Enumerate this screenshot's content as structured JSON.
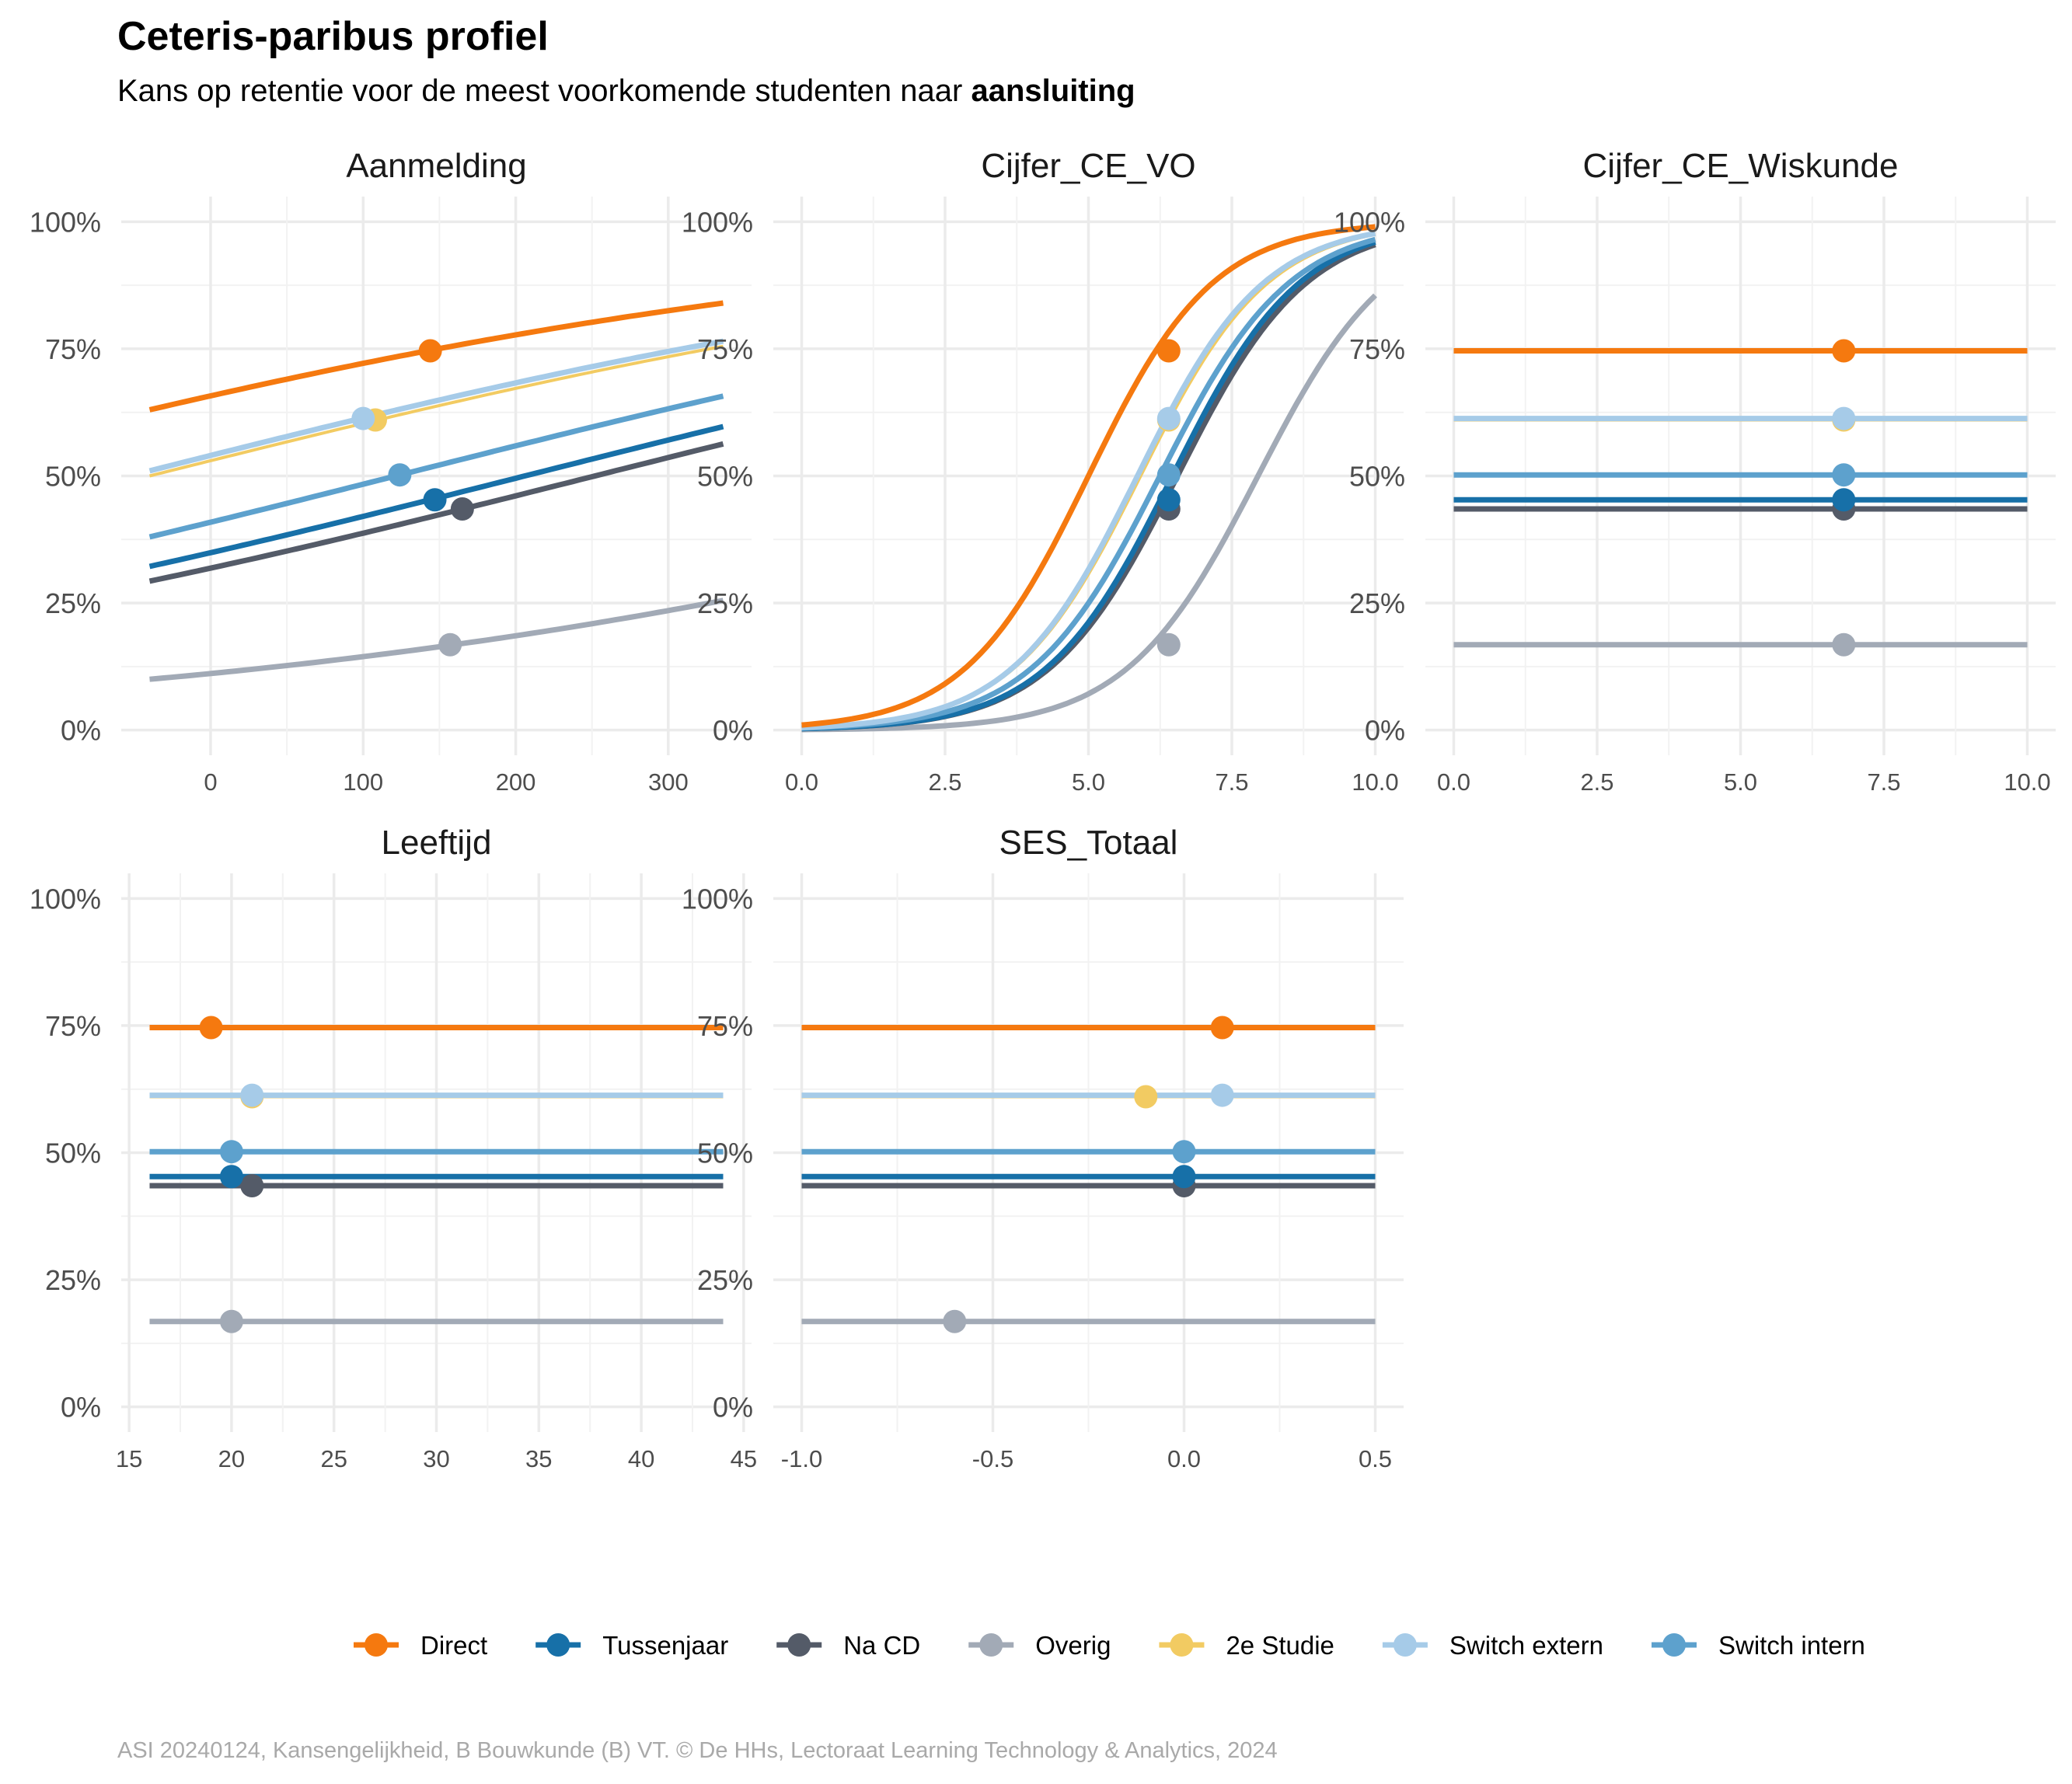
{
  "title": "Ceteris-paribus profiel",
  "subtitle_prefix": "Kans op retentie voor de meest voorkomende studenten naar ",
  "subtitle_bold": "aansluiting",
  "caption": "ASI 20240124, Kansengelijkheid, B Bouwkunde (B) VT. © De HHs, Lectoraat Learning Technology & Analytics, 2024",
  "chart_data": {
    "type": "line",
    "ylim": [
      0,
      1
    ],
    "y_ticks": [
      0,
      0.25,
      0.5,
      0.75,
      1.0
    ],
    "y_tick_labels": [
      "0%",
      "25%",
      "50%",
      "75%",
      "100%"
    ],
    "grid": true,
    "legend_position": "bottom",
    "series_styles": [
      {
        "name": "Direct",
        "color": "#F5790F"
      },
      {
        "name": "Tussenjaar",
        "color": "#1770A8"
      },
      {
        "name": "Na CD",
        "color": "#545B68"
      },
      {
        "name": "Overig",
        "color": "#A2AAB6"
      },
      {
        "name": "2e Studie",
        "color": "#F2CB62"
      },
      {
        "name": "Switch extern",
        "color": "#A6CBE8"
      },
      {
        "name": "Switch intern",
        "color": "#5DA1CD"
      }
    ],
    "panels": [
      {
        "title": "Aanmelding",
        "xlim": [
          -40,
          336
        ],
        "x_ticks": [
          0,
          100,
          200,
          300
        ],
        "x_tick_labels": [
          "0",
          "100",
          "200",
          "300"
        ],
        "curve": "logistic",
        "series": [
          {
            "name": "Overig",
            "y_start": 0.1,
            "y_end": 0.255,
            "point": [
              157,
              0.168
            ]
          },
          {
            "name": "Na CD",
            "y_start": 0.293,
            "y_end": 0.563,
            "point": [
              165,
              0.435
            ]
          },
          {
            "name": "Tussenjaar",
            "y_start": 0.322,
            "y_end": 0.597,
            "point": [
              147,
              0.453
            ]
          },
          {
            "name": "Switch intern",
            "y_start": 0.38,
            "y_end": 0.657,
            "point": [
              124,
              0.502
            ]
          },
          {
            "name": "2e Studie",
            "y_start": 0.5,
            "y_end": 0.755,
            "point": [
              108,
              0.61
            ]
          },
          {
            "name": "Switch extern",
            "y_start": 0.51,
            "y_end": 0.765,
            "point": [
              100,
              0.613
            ]
          },
          {
            "name": "Direct",
            "y_start": 0.63,
            "y_end": 0.84,
            "point": [
              144,
              0.746
            ]
          }
        ]
      },
      {
        "title": "Cijfer_CE_VO",
        "xlim": [
          0,
          10
        ],
        "x_ticks": [
          0,
          2.5,
          5,
          7.5,
          10
        ],
        "x_tick_labels": [
          "0.0",
          "2.5",
          "5.0",
          "7.5",
          "10.0"
        ],
        "curve": "logistic",
        "series": [
          {
            "name": "Overig",
            "y_start": 0.001,
            "y_end": 0.855,
            "point": [
              6.4,
              0.168
            ]
          },
          {
            "name": "Na CD",
            "y_start": 0.003,
            "y_end": 0.955,
            "point": [
              6.4,
              0.435
            ]
          },
          {
            "name": "Tussenjaar",
            "y_start": 0.003,
            "y_end": 0.96,
            "point": [
              6.4,
              0.453
            ]
          },
          {
            "name": "Switch intern",
            "y_start": 0.004,
            "y_end": 0.965,
            "point": [
              6.4,
              0.502
            ]
          },
          {
            "name": "2e Studie",
            "y_start": 0.005,
            "y_end": 0.975,
            "point": [
              6.4,
              0.61
            ]
          },
          {
            "name": "Switch extern",
            "y_start": 0.005,
            "y_end": 0.977,
            "point": [
              6.4,
              0.613
            ]
          },
          {
            "name": "Direct",
            "y_start": 0.01,
            "y_end": 0.99,
            "point": [
              6.4,
              0.746
            ]
          }
        ]
      },
      {
        "title": "Cijfer_CE_Wiskunde",
        "xlim": [
          0,
          10
        ],
        "x_ticks": [
          0,
          2.5,
          5,
          7.5,
          10
        ],
        "x_tick_labels": [
          "0.0",
          "2.5",
          "5.0",
          "7.5",
          "10.0"
        ],
        "curve": "flat",
        "series": [
          {
            "name": "Overig",
            "y_start": 0.168,
            "y_end": 0.168,
            "point": [
              6.8,
              0.168
            ]
          },
          {
            "name": "Na CD",
            "y_start": 0.435,
            "y_end": 0.435,
            "point": [
              6.8,
              0.435
            ]
          },
          {
            "name": "Tussenjaar",
            "y_start": 0.453,
            "y_end": 0.453,
            "point": [
              6.8,
              0.453
            ]
          },
          {
            "name": "Switch intern",
            "y_start": 0.502,
            "y_end": 0.502,
            "point": [
              6.8,
              0.502
            ]
          },
          {
            "name": "2e Studie",
            "y_start": 0.61,
            "y_end": 0.61,
            "point": [
              6.8,
              0.61
            ]
          },
          {
            "name": "Switch extern",
            "y_start": 0.613,
            "y_end": 0.613,
            "point": [
              6.8,
              0.613
            ]
          },
          {
            "name": "Direct",
            "y_start": 0.746,
            "y_end": 0.746,
            "point": [
              6.8,
              0.746
            ]
          }
        ]
      },
      {
        "title": "Leeftijd",
        "xlim": [
          16,
          44
        ],
        "x_ticks": [
          15,
          20,
          25,
          30,
          35,
          40,
          45
        ],
        "x_tick_labels": [
          "15",
          "20",
          "25",
          "30",
          "35",
          "40",
          "45"
        ],
        "curve": "flat",
        "series": [
          {
            "name": "Overig",
            "y_start": 0.168,
            "y_end": 0.168,
            "point": [
              20,
              0.168
            ]
          },
          {
            "name": "Na CD",
            "y_start": 0.435,
            "y_end": 0.435,
            "point": [
              21,
              0.435
            ]
          },
          {
            "name": "Tussenjaar",
            "y_start": 0.453,
            "y_end": 0.453,
            "point": [
              20,
              0.453
            ]
          },
          {
            "name": "Switch intern",
            "y_start": 0.502,
            "y_end": 0.502,
            "point": [
              20,
              0.502
            ]
          },
          {
            "name": "2e Studie",
            "y_start": 0.61,
            "y_end": 0.61,
            "point": [
              21,
              0.61
            ]
          },
          {
            "name": "Switch extern",
            "y_start": 0.613,
            "y_end": 0.613,
            "point": [
              21,
              0.613
            ]
          },
          {
            "name": "Direct",
            "y_start": 0.746,
            "y_end": 0.746,
            "point": [
              19,
              0.746
            ]
          }
        ]
      },
      {
        "title": "SES_Totaal",
        "xlim": [
          -1,
          0.5
        ],
        "x_ticks": [
          -1,
          -0.5,
          0,
          0.5
        ],
        "x_tick_labels": [
          "-1.0",
          "-0.5",
          "0.0",
          "0.5"
        ],
        "curve": "flat",
        "series": [
          {
            "name": "Overig",
            "y_start": 0.168,
            "y_end": 0.168,
            "point": [
              -0.6,
              0.168
            ]
          },
          {
            "name": "Na CD",
            "y_start": 0.435,
            "y_end": 0.435,
            "point": [
              0,
              0.435
            ]
          },
          {
            "name": "Tussenjaar",
            "y_start": 0.453,
            "y_end": 0.453,
            "point": [
              0,
              0.453
            ]
          },
          {
            "name": "Switch intern",
            "y_start": 0.502,
            "y_end": 0.502,
            "point": [
              0,
              0.502
            ]
          },
          {
            "name": "2e Studie",
            "y_start": 0.61,
            "y_end": 0.61,
            "point": [
              -0.1,
              0.61
            ]
          },
          {
            "name": "Switch extern",
            "y_start": 0.613,
            "y_end": 0.613,
            "point": [
              0.1,
              0.613
            ]
          },
          {
            "name": "Direct",
            "y_start": 0.746,
            "y_end": 0.746,
            "point": [
              0.1,
              0.746
            ]
          }
        ]
      }
    ]
  }
}
